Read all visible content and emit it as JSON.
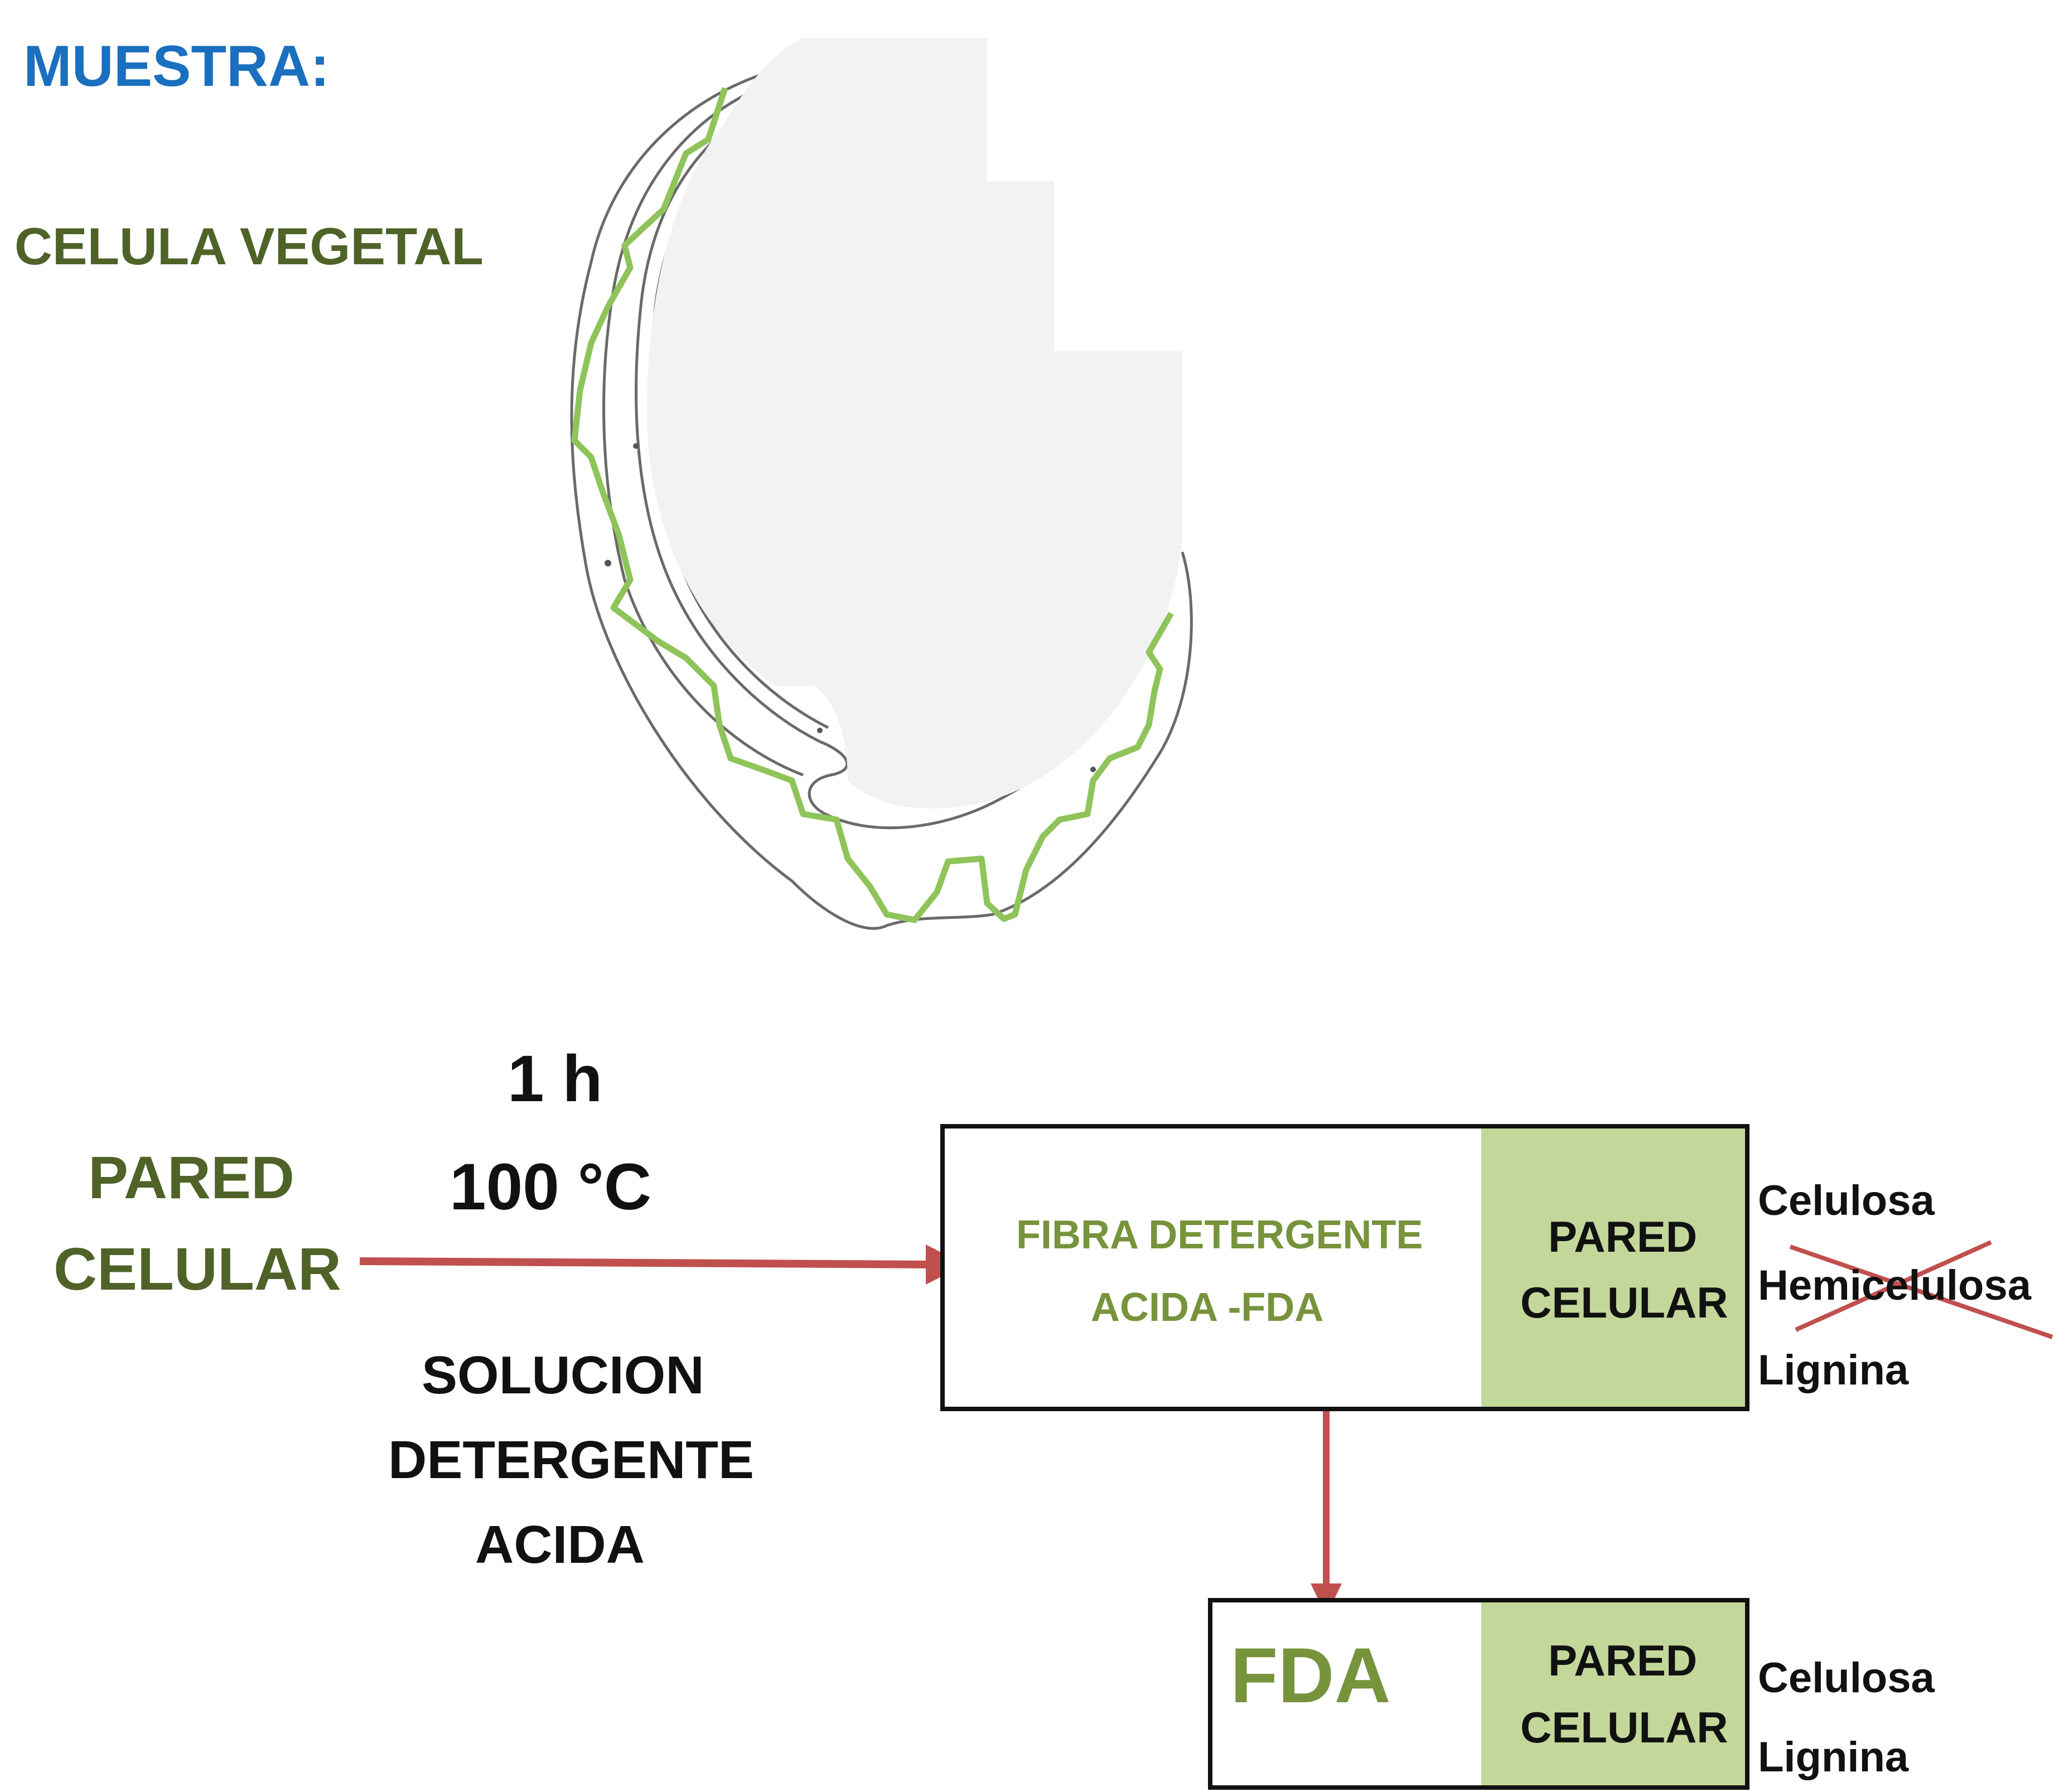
{
  "header": {
    "sample_label": "MUESTRA:",
    "cell_label": "CELULA VEGETAL"
  },
  "input": {
    "line1": "PARED",
    "line2": "CELULAR"
  },
  "conditions": {
    "time": "1 h",
    "temperature": "100 °C"
  },
  "reagent": {
    "line1": "SOLUCION",
    "line2": "DETERGENTE",
    "line3": "ACIDA"
  },
  "fda_box": {
    "line1": "FIBRA DETERGENTE",
    "line2": "ACIDA -FDA",
    "wall_line1": "PARED",
    "wall_line2": "CELULAR",
    "components": [
      "Celulosa",
      "Hemicelulosa",
      "Lignina"
    ]
  },
  "result_box": {
    "label": "FDA",
    "wall_line1": "PARED",
    "wall_line2": "CELULAR",
    "components": [
      "Celulosa",
      "Lignina"
    ]
  },
  "colors": {
    "blue_title": "#1a6fbf",
    "dark_green": "#4f6228",
    "light_green_text": "#77933c",
    "wall_fill": "#c4d79b",
    "wall_outline": "#8fc45a",
    "arrow": "#c0504d",
    "text": "#111111"
  }
}
